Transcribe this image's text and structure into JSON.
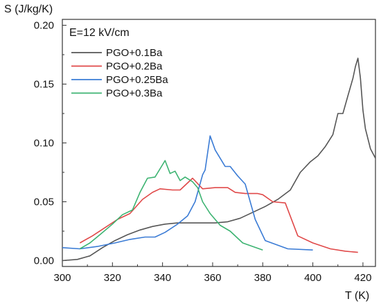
{
  "chart_data": {
    "type": "line",
    "title": "",
    "xlabel": "T (K)",
    "ylabel": "S (J/kg/K)",
    "xlim": [
      300,
      425
    ],
    "ylim": [
      -0.005,
      0.205
    ],
    "xticks": [
      300,
      320,
      340,
      360,
      380,
      400,
      420
    ],
    "yticks": [
      0.0,
      0.05,
      0.1,
      0.15,
      0.2
    ],
    "ytick_labels": [
      "0.00",
      "0.05",
      "0.10",
      "0.15",
      "0.20"
    ],
    "annotation": "E=12 kV/cm",
    "legend_position": "top-left",
    "grid": false,
    "series": [
      {
        "name": "PGO+0.1Ba",
        "color": "#555555",
        "points": [
          [
            300,
            0.0
          ],
          [
            306,
            0.001
          ],
          [
            311,
            0.004
          ],
          [
            316,
            0.011
          ],
          [
            321,
            0.017
          ],
          [
            326,
            0.022
          ],
          [
            331,
            0.026
          ],
          [
            336,
            0.029
          ],
          [
            341,
            0.031
          ],
          [
            346,
            0.032
          ],
          [
            351,
            0.032
          ],
          [
            356,
            0.032
          ],
          [
            361,
            0.032
          ],
          [
            366,
            0.033
          ],
          [
            371,
            0.036
          ],
          [
            376,
            0.041
          ],
          [
            381,
            0.046
          ],
          [
            386,
            0.052
          ],
          [
            391,
            0.06
          ],
          [
            395,
            0.075
          ],
          [
            399,
            0.084
          ],
          [
            402,
            0.089
          ],
          [
            405,
            0.097
          ],
          [
            408,
            0.107
          ],
          [
            410,
            0.125
          ],
          [
            412,
            0.125
          ],
          [
            414,
            0.14
          ],
          [
            416,
            0.155
          ],
          [
            417,
            0.165
          ],
          [
            418,
            0.172
          ],
          [
            419,
            0.155
          ],
          [
            420,
            0.128
          ],
          [
            421,
            0.112
          ],
          [
            423,
            0.095
          ],
          [
            425,
            0.087
          ]
        ]
      },
      {
        "name": "PGO+0.2Ba",
        "color": "#e04848",
        "points": [
          [
            307,
            0.015
          ],
          [
            312,
            0.021
          ],
          [
            317,
            0.028
          ],
          [
            322,
            0.035
          ],
          [
            327,
            0.04
          ],
          [
            332,
            0.052
          ],
          [
            336,
            0.058
          ],
          [
            339,
            0.061
          ],
          [
            344,
            0.06
          ],
          [
            347,
            0.06
          ],
          [
            352,
            0.07
          ],
          [
            356,
            0.061
          ],
          [
            361,
            0.062
          ],
          [
            366,
            0.062
          ],
          [
            369,
            0.058
          ],
          [
            373,
            0.057
          ],
          [
            378,
            0.057
          ],
          [
            380,
            0.056
          ],
          [
            384,
            0.05
          ],
          [
            389,
            0.049
          ],
          [
            394,
            0.021
          ],
          [
            400,
            0.015
          ],
          [
            407,
            0.01
          ],
          [
            413,
            0.008
          ],
          [
            418,
            0.007
          ]
        ]
      },
      {
        "name": "PGO+0.25Ba",
        "color": "#3a7bd5",
        "points": [
          [
            300,
            0.011
          ],
          [
            307,
            0.01
          ],
          [
            314,
            0.012
          ],
          [
            321,
            0.015
          ],
          [
            327,
            0.018
          ],
          [
            333,
            0.02
          ],
          [
            337,
            0.02
          ],
          [
            341,
            0.024
          ],
          [
            346,
            0.031
          ],
          [
            350,
            0.038
          ],
          [
            353,
            0.05
          ],
          [
            356,
            0.073
          ],
          [
            357,
            0.077
          ],
          [
            359,
            0.106
          ],
          [
            361,
            0.094
          ],
          [
            363,
            0.087
          ],
          [
            365,
            0.08
          ],
          [
            367,
            0.08
          ],
          [
            370,
            0.072
          ],
          [
            373,
            0.065
          ],
          [
            377,
            0.035
          ],
          [
            381,
            0.017
          ],
          [
            390,
            0.01
          ],
          [
            400,
            0.009
          ]
        ]
      },
      {
        "name": "PGO+0.3Ba",
        "color": "#3cb371",
        "points": [
          [
            307,
            0.01
          ],
          [
            311,
            0.015
          ],
          [
            315,
            0.022
          ],
          [
            320,
            0.031
          ],
          [
            324,
            0.039
          ],
          [
            328,
            0.043
          ],
          [
            331,
            0.058
          ],
          [
            334,
            0.07
          ],
          [
            337,
            0.071
          ],
          [
            341,
            0.085
          ],
          [
            343,
            0.074
          ],
          [
            345,
            0.076
          ],
          [
            347,
            0.068
          ],
          [
            349,
            0.071
          ],
          [
            352,
            0.067
          ],
          [
            354,
            0.062
          ],
          [
            356,
            0.05
          ],
          [
            359,
            0.04
          ],
          [
            363,
            0.03
          ],
          [
            367,
            0.025
          ],
          [
            372,
            0.015
          ],
          [
            376,
            0.012
          ],
          [
            380,
            0.009
          ]
        ]
      }
    ]
  }
}
